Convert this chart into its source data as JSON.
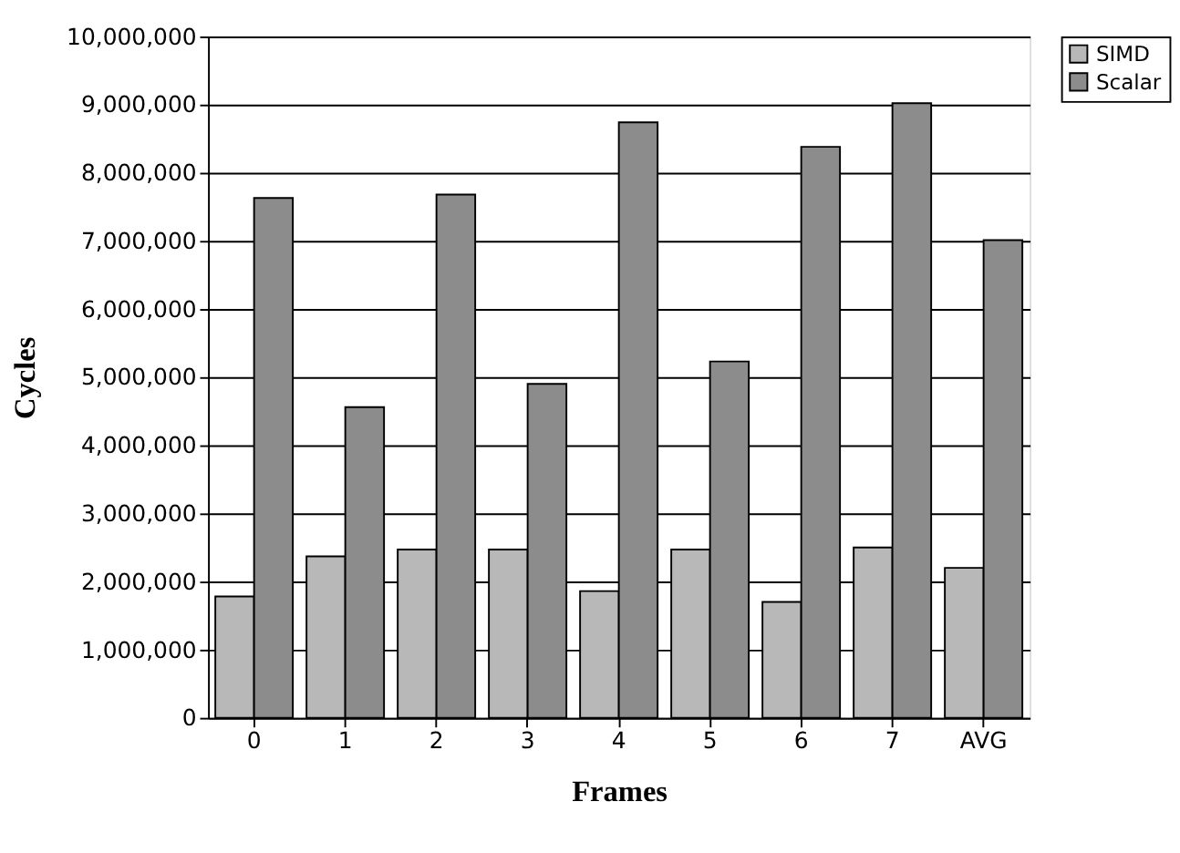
{
  "chart_data": {
    "type": "bar",
    "xlabel": "Frames",
    "ylabel": "Cycles",
    "categories": [
      "0",
      "1",
      "2",
      "3",
      "4",
      "5",
      "6",
      "7",
      "AVG"
    ],
    "series": [
      {
        "name": "SIMD",
        "color": "#b8b8b8",
        "values": [
          1780000,
          2370000,
          2470000,
          2470000,
          1860000,
          2470000,
          1700000,
          2500000,
          2200000
        ]
      },
      {
        "name": "Scalar",
        "color": "#8c8c8c",
        "values": [
          7630000,
          4560000,
          7680000,
          4900000,
          8740000,
          5230000,
          8380000,
          9020000,
          7010000
        ]
      }
    ],
    "ylim": [
      0,
      10000000
    ],
    "yticks": [
      {
        "value": 0,
        "label": "0"
      },
      {
        "value": 1000000,
        "label": "1,000,000"
      },
      {
        "value": 2000000,
        "label": "2,000,000"
      },
      {
        "value": 3000000,
        "label": "3,000,000"
      },
      {
        "value": 4000000,
        "label": "4,000,000"
      },
      {
        "value": 5000000,
        "label": "5,000,000"
      },
      {
        "value": 6000000,
        "label": "6,000,000"
      },
      {
        "value": 7000000,
        "label": "7,000,000"
      },
      {
        "value": 8000000,
        "label": "8,000,000"
      },
      {
        "value": 9000000,
        "label": "9,000,000"
      },
      {
        "value": 10000000,
        "label": "10,000,000"
      }
    ],
    "grid": "y",
    "legend": "right"
  }
}
